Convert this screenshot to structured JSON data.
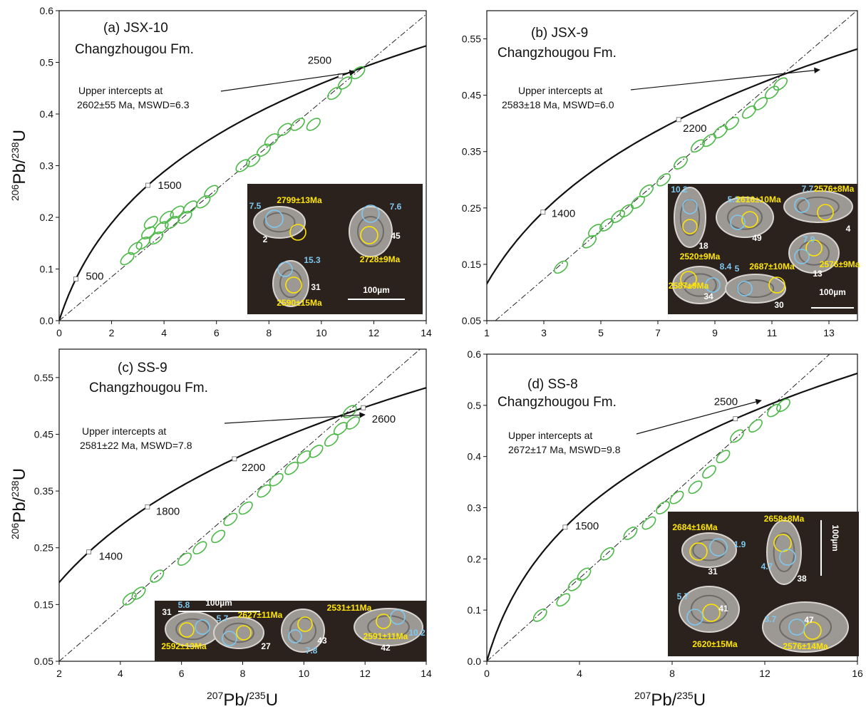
{
  "chart_data": [
    {
      "type": "concordia",
      "title": "(a) JSX-10",
      "subtitle": "Changzhougou Fm.",
      "annotation": [
        "Upper intercepts at",
        "2602±55 Ma, MSWD=6.3"
      ],
      "xlim": [
        0,
        14
      ],
      "xticks": [
        0,
        2,
        4,
        6,
        8,
        10,
        12,
        14
      ],
      "ylim": [
        0,
        0.6
      ],
      "yticks": [
        {
          "value": 0,
          "label": "0.0"
        },
        0.1,
        0.2,
        0.3,
        0.4,
        0.5,
        0.6
      ],
      "y_label": [
        "206",
        "Pb/",
        "238",
        "U"
      ],
      "concordia_ages": [
        500,
        1500,
        2500
      ],
      "discordia": {
        "x": [
          0,
          14
        ],
        "y": [
          0,
          0.593
        ]
      },
      "ellipses": {
        "color": "#4cb848",
        "x": [
          2.6,
          2.9,
          3.2,
          3.4,
          3.5,
          3.7,
          3.9,
          4.1,
          4.3,
          4.5,
          4.8,
          5.0,
          5.5,
          5.8,
          7.0,
          7.4,
          7.8,
          8.1,
          8.6,
          9.1,
          9.7,
          10.5,
          10.9,
          11.4
        ],
        "y": [
          0.12,
          0.14,
          0.15,
          0.17,
          0.19,
          0.16,
          0.18,
          0.2,
          0.19,
          0.21,
          0.2,
          0.22,
          0.23,
          0.25,
          0.3,
          0.31,
          0.33,
          0.35,
          0.37,
          0.38,
          0.38,
          0.44,
          0.46,
          0.48
        ]
      },
      "inset": {
        "labels": [
          {
            "text": "2799±13Ma",
            "color": "#ffe600"
          },
          {
            "text": "7.5",
            "color": "#7ec8f0"
          },
          {
            "text": "2",
            "color": "#ffffff"
          },
          {
            "text": "7.6",
            "color": "#7ec8f0"
          },
          {
            "text": "45",
            "color": "#ffffff"
          },
          {
            "text": "2728±9Ma",
            "color": "#ffe600"
          },
          {
            "text": "15.3",
            "color": "#7ec8f0"
          },
          {
            "text": "31",
            "color": "#ffffff"
          },
          {
            "text": "2590±15Ma",
            "color": "#ffe600"
          },
          {
            "text": "100µm",
            "color": "#ffffff"
          }
        ]
      }
    },
    {
      "type": "concordia",
      "title": "(b) JSX-9",
      "subtitle": "Changzhougou Fm.",
      "annotation": [
        "Upper intercepts at",
        "2583±18 Ma, MSWD=6.0"
      ],
      "xlim": [
        1,
        14
      ],
      "xticks": [
        1,
        3,
        5,
        7,
        9,
        11,
        13
      ],
      "ylim": [
        0.05,
        0.6
      ],
      "yticks": [
        0.05,
        0.15,
        0.25,
        0.35,
        0.45,
        0.55
      ],
      "concordia_ages": [
        1400,
        2200
      ],
      "discordia": {
        "x": [
          1.3,
          14
        ],
        "y": [
          0.05,
          0.601
        ]
      },
      "ellipses": {
        "color": "#4cb848",
        "x": [
          3.6,
          4.6,
          4.8,
          5.2,
          5.6,
          5.9,
          6.3,
          6.6,
          7.2,
          7.8,
          8.4,
          8.8,
          9.2,
          9.6,
          10.2,
          10.6,
          11.0,
          11.3
        ],
        "y": [
          0.145,
          0.19,
          0.21,
          0.22,
          0.235,
          0.245,
          0.26,
          0.28,
          0.3,
          0.33,
          0.36,
          0.37,
          0.385,
          0.4,
          0.42,
          0.435,
          0.455,
          0.47
        ]
      },
      "inset": {
        "labels": [
          {
            "text": "10.2",
            "color": "#7ec8f0"
          },
          {
            "text": "5.3",
            "color": "#7ec8f0"
          },
          {
            "text": "2616±10Ma",
            "color": "#ffe600"
          },
          {
            "text": "7.7",
            "color": "#7ec8f0"
          },
          {
            "text": "2576±8Ma",
            "color": "#ffe600"
          },
          {
            "text": "18",
            "color": "#ffffff"
          },
          {
            "text": "49",
            "color": "#ffffff"
          },
          {
            "text": "4",
            "color": "#ffffff"
          },
          {
            "text": "2520±9Ma",
            "color": "#ffe600"
          },
          {
            "text": "7.9",
            "color": "#7ec8f0"
          },
          {
            "text": "13",
            "color": "#ffffff"
          },
          {
            "text": "2576±9Ma",
            "color": "#ffe600"
          },
          {
            "text": "8.4",
            "color": "#7ec8f0"
          },
          {
            "text": "5",
            "color": "#7ec8f0"
          },
          {
            "text": "2687±10Ma",
            "color": "#ffe600"
          },
          {
            "text": "34",
            "color": "#ffffff"
          },
          {
            "text": "30",
            "color": "#ffffff"
          },
          {
            "text": "2587±9Ma",
            "color": "#ffe600"
          },
          {
            "text": "100µm",
            "color": "#ffffff"
          }
        ]
      }
    },
    {
      "type": "concordia",
      "title": "(c) SS-9",
      "subtitle": "Changzhougou Fm.",
      "annotation": [
        "Upper intercepts at",
        "2581±22 Ma, MSWD=7.8"
      ],
      "xlim": [
        2,
        14
      ],
      "xticks": [
        2,
        4,
        6,
        8,
        10,
        12,
        14
      ],
      "ylim": [
        0.05,
        0.6
      ],
      "yticks": [
        0.05,
        0.15,
        0.25,
        0.35,
        0.45,
        0.55
      ],
      "y_label": [
        "206",
        "Pb/",
        "238",
        "U"
      ],
      "x_label": [
        "207",
        "Pb/",
        "235",
        "U"
      ],
      "concordia_ages": [
        1400,
        1800,
        2200,
        2600
      ],
      "discordia": {
        "x": [
          2,
          13.8
        ],
        "y": [
          0.05,
          0.6
        ]
      },
      "ellipses": {
        "color": "#4cb848",
        "x": [
          4.3,
          4.6,
          5.2,
          6.1,
          6.6,
          7.2,
          7.6,
          8.1,
          8.7,
          9.1,
          9.6,
          10.0,
          10.4,
          10.9,
          11.2,
          11.6,
          11.5
        ],
        "y": [
          0.16,
          0.17,
          0.2,
          0.23,
          0.25,
          0.27,
          0.3,
          0.32,
          0.35,
          0.37,
          0.39,
          0.41,
          0.42,
          0.44,
          0.46,
          0.47,
          0.49
        ]
      },
      "inset": {
        "labels": [
          {
            "text": "31",
            "color": "#ffffff"
          },
          {
            "text": "5.8",
            "color": "#7ec8f0"
          },
          {
            "text": "100µm",
            "color": "#ffffff"
          },
          {
            "text": "5.7",
            "color": "#7ec8f0"
          },
          {
            "text": "2627±11Ma",
            "color": "#ffe600"
          },
          {
            "text": "2531±11Ma",
            "color": "#ffe600"
          },
          {
            "text": "2592±13Ma",
            "color": "#ffe600"
          },
          {
            "text": "27",
            "color": "#ffffff"
          },
          {
            "text": "43",
            "color": "#ffffff"
          },
          {
            "text": "7.8",
            "color": "#7ec8f0"
          },
          {
            "text": "2591±11Ma",
            "color": "#ffe600"
          },
          {
            "text": "10.2",
            "color": "#7ec8f0"
          },
          {
            "text": "42",
            "color": "#ffffff"
          }
        ]
      }
    },
    {
      "type": "concordia",
      "title": "(d) SS-8",
      "subtitle": "Changzhougou Fm.",
      "annotation": [
        "Upper intercepts at",
        "2672±17 Ma, MSWD=9.8"
      ],
      "xlim": [
        0,
        16
      ],
      "xticks": [
        0,
        4,
        8,
        12,
        16
      ],
      "ylim": [
        0,
        0.6
      ],
      "yticks": [
        {
          "value": 0,
          "label": "0.0"
        },
        0.1,
        0.2,
        0.3,
        0.4,
        0.5,
        0.6
      ],
      "x_label": [
        "207",
        "Pb/",
        "235",
        "U"
      ],
      "concordia_ages": [
        1500,
        2500
      ],
      "discordia": {
        "x": [
          0,
          14.8
        ],
        "y": [
          0,
          0.6
        ]
      },
      "ellipses": {
        "color": "#4cb848",
        "x": [
          2.3,
          3.3,
          3.8,
          4.2,
          5.2,
          6.2,
          7.0,
          7.6,
          8.2,
          9.0,
          9.6,
          10.2,
          10.8,
          11.6,
          12.4,
          12.8
        ],
        "y": [
          0.09,
          0.12,
          0.15,
          0.17,
          0.21,
          0.25,
          0.27,
          0.3,
          0.32,
          0.34,
          0.37,
          0.4,
          0.44,
          0.46,
          0.49,
          0.5
        ]
      },
      "inset": {
        "labels": [
          {
            "text": "2684±16Ma",
            "color": "#ffe600"
          },
          {
            "text": "2658±8Ma",
            "color": "#ffe600"
          },
          {
            "text": "100µm",
            "color": "#ffffff"
          },
          {
            "text": "1.9",
            "color": "#7ec8f0"
          },
          {
            "text": "4.7",
            "color": "#7ec8f0"
          },
          {
            "text": "31",
            "color": "#ffffff"
          },
          {
            "text": "38",
            "color": "#ffffff"
          },
          {
            "text": "5.7",
            "color": "#7ec8f0"
          },
          {
            "text": "41",
            "color": "#ffffff"
          },
          {
            "text": "47",
            "color": "#ffffff"
          },
          {
            "text": "3.7",
            "color": "#7ec8f0"
          },
          {
            "text": "2620±15Ma",
            "color": "#ffe600"
          },
          {
            "text": "2576±14Ma",
            "color": "#ffe600"
          }
        ]
      }
    }
  ]
}
